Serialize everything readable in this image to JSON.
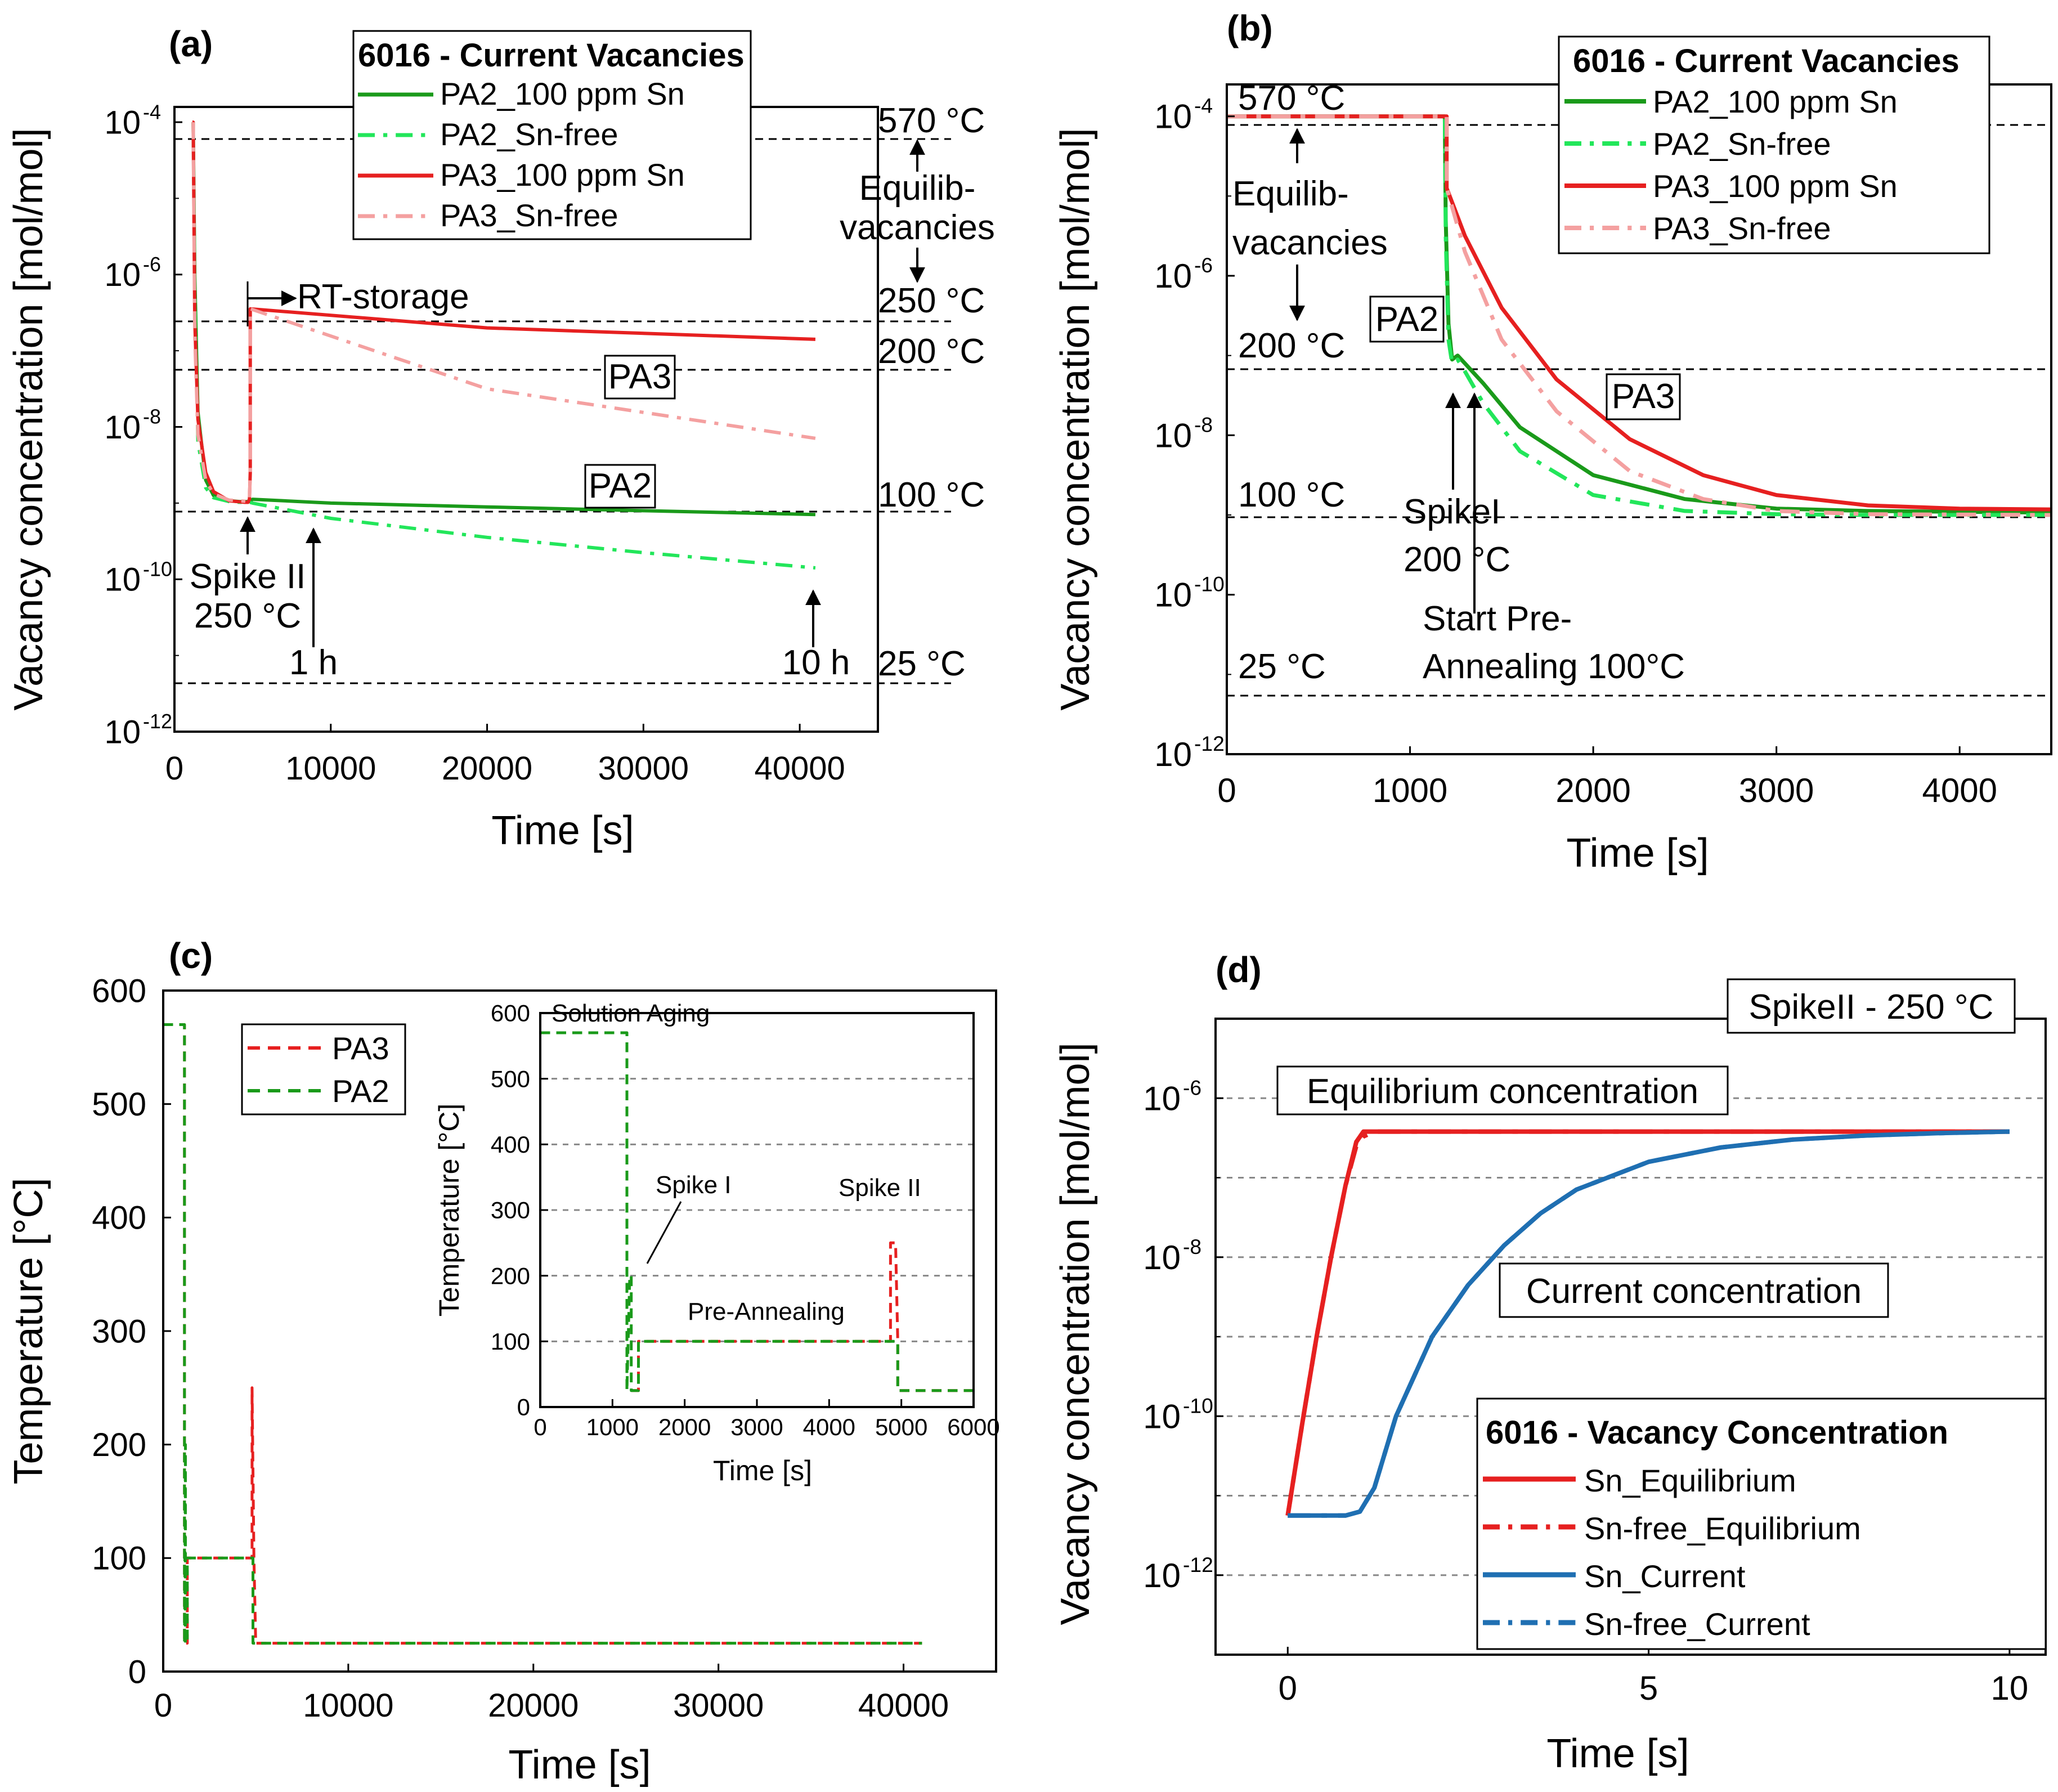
{
  "colors": {
    "green": "#1a9a1a",
    "lightgreen": "#22e65a",
    "red": "#e62020",
    "pink": "#f4a0a0",
    "blue": "#1f6fb2"
  },
  "chart_data": [
    {
      "id": "a",
      "type": "line",
      "panel_label": "(a)",
      "xlabel": "Time [s]",
      "ylabel": "Vacancy concentration [mol/mol]",
      "xlim": [
        0,
        45000
      ],
      "ylim_log10": [
        -12,
        -3.8
      ],
      "y_scale": "log",
      "xticks": [
        "0",
        "10000",
        "20000",
        "30000",
        "40000"
      ],
      "xtick_values": [
        0,
        10000,
        20000,
        30000,
        40000
      ],
      "yticks": [
        "10",
        "10",
        "10",
        "10",
        "10"
      ],
      "ytick_exponents": [
        "-4",
        "-6",
        "-8",
        "-10",
        "-12"
      ],
      "ytick_values_log10": [
        -4,
        -6,
        -8,
        -10,
        -12
      ],
      "legend": {
        "title": "6016 - Current Vacancies",
        "position": "top",
        "items": [
          "PA2_100 ppm Sn",
          "PA2_Sn-free",
          "PA3_100 ppm Sn",
          "PA3_Sn-free"
        ]
      },
      "reference_lines": [
        {
          "label": "570 °C",
          "log10": -4
        },
        {
          "label": "250 °C",
          "log10": -6.45
        },
        {
          "label": "200 °C",
          "log10": -7.1
        },
        {
          "label": "100 °C",
          "log10": -9
        },
        {
          "label": "25 °C",
          "log10": -11.3
        }
      ],
      "annotations": {
        "equilib": [
          "Equilib-",
          "vacancies"
        ],
        "rt_storage": "RT-storage",
        "pa3": "PA3",
        "pa2": "PA2",
        "spike": [
          "Spike II",
          "250 °C"
        ],
        "one_h": "1 h",
        "ten_h": "10 h"
      },
      "series": [
        {
          "name": "PA2_100 ppm Sn",
          "color": "green",
          "style": "solid",
          "x": [
            1200,
            1300,
            1500,
            2000,
            2500,
            3500,
            4200,
            4800,
            5000,
            10000,
            20000,
            30000,
            41000
          ],
          "log10": [
            -4,
            -6,
            -7.8,
            -8.7,
            -8.9,
            -8.97,
            -8.98,
            -8.98,
            -8.95,
            -9.0,
            -9.05,
            -9.1,
            -9.15
          ]
        },
        {
          "name": "PA2_Sn-free",
          "color": "lightgreen",
          "style": "dashdot",
          "x": [
            1200,
            1300,
            1500,
            2000,
            2500,
            3500,
            4200,
            4800,
            5000,
            10000,
            20000,
            30000,
            41000
          ],
          "log10": [
            -4,
            -6.2,
            -8.2,
            -8.8,
            -8.93,
            -8.98,
            -8.99,
            -8.99,
            -9.0,
            -9.2,
            -9.45,
            -9.65,
            -9.85
          ]
        },
        {
          "name": "PA3_100 ppm Sn",
          "color": "red",
          "style": "solid",
          "x": [
            1150,
            1200,
            1300,
            1500,
            2000,
            2500,
            3500,
            4500,
            4700,
            4800,
            4850,
            4850,
            20000,
            41000
          ],
          "log10": [
            -4,
            -4,
            -6.6,
            -7.9,
            -8.6,
            -8.85,
            -8.97,
            -8.99,
            -8.99,
            -8.95,
            -8.6,
            -6.45,
            -6.7,
            -6.85
          ]
        },
        {
          "name": "PA3_Sn-free",
          "color": "pink",
          "style": "dashdot",
          "x": [
            1200,
            1300,
            1500,
            2000,
            2500,
            3500,
            4800,
            4850,
            4850,
            20000,
            41000
          ],
          "log10": [
            -4,
            -6.8,
            -8.1,
            -8.7,
            -8.88,
            -8.96,
            -8.98,
            -8.6,
            -6.45,
            -7.5,
            -8.15
          ]
        }
      ]
    },
    {
      "id": "b",
      "type": "line",
      "panel_label": "(b)",
      "xlabel": "Time [s]",
      "ylabel": "Vacancy concentration [mol/mol]",
      "xlim": [
        0,
        4500
      ],
      "ylim_log10": [
        -12,
        -3.6
      ],
      "y_scale": "log",
      "xticks": [
        "0",
        "1000",
        "2000",
        "3000",
        "4000"
      ],
      "xtick_values": [
        0,
        1000,
        2000,
        3000,
        4000
      ],
      "yticks": [
        "10",
        "10",
        "10",
        "10",
        "10"
      ],
      "ytick_exponents": [
        "-4",
        "-6",
        "-8",
        "-10",
        "-12"
      ],
      "ytick_values_log10": [
        -4,
        -6,
        -8,
        -10,
        -12
      ],
      "legend": {
        "title": "6016 - Current Vacancies",
        "position": "top-right",
        "items": [
          "PA2_100 ppm Sn",
          "PA2_Sn-free",
          "PA3_100 ppm Sn",
          "PA3_Sn-free"
        ]
      },
      "reference_lines": [
        {
          "label": "570 °C",
          "log10": -4
        },
        {
          "label": "200 °C",
          "log10": -7.1
        },
        {
          "label": "100 °C",
          "log10": -9
        },
        {
          "label": "25 °C",
          "log10": -11.3
        }
      ],
      "annotations": {
        "equilib": [
          "Equilib-",
          "vacancies"
        ],
        "pa2": "PA2",
        "pa3": "PA3",
        "spike": [
          "SpikeI",
          "200 °C"
        ],
        "start": [
          "Start Pre-",
          "Annealing 100°C"
        ]
      },
      "series": [
        {
          "name": "PA2_100 ppm Sn",
          "color": "green",
          "style": "solid",
          "x": [
            0,
            1190,
            1195,
            1210,
            1230,
            1260,
            1300,
            1400,
            1600,
            2000,
            2500,
            3000,
            3500,
            4000,
            4500
          ],
          "log10": [
            -4,
            -4,
            -5.3,
            -6.6,
            -7.05,
            -7.0,
            -7.1,
            -7.35,
            -7.9,
            -8.5,
            -8.8,
            -8.92,
            -8.95,
            -8.96,
            -8.97
          ]
        },
        {
          "name": "PA2_Sn-free",
          "color": "lightgreen",
          "style": "dashdot",
          "x": [
            0,
            1190,
            1195,
            1210,
            1230,
            1260,
            1300,
            1400,
            1600,
            2000,
            2500,
            3000,
            3500,
            4000,
            4500
          ],
          "log10": [
            -4,
            -4,
            -5.5,
            -6.8,
            -7.1,
            -7.05,
            -7.2,
            -7.6,
            -8.2,
            -8.75,
            -8.95,
            -8.99,
            -9.0,
            -9.0,
            -9.0
          ]
        },
        {
          "name": "PA3_100 ppm Sn",
          "color": "red",
          "style": "solid",
          "x": [
            0,
            1200,
            1200,
            1300,
            1500,
            1800,
            2200,
            2600,
            3000,
            3500,
            4000,
            4500
          ],
          "log10": [
            -4,
            -4,
            -4.9,
            -5.5,
            -6.4,
            -7.3,
            -8.05,
            -8.5,
            -8.75,
            -8.88,
            -8.92,
            -8.93
          ]
        },
        {
          "name": "PA3_Sn-free",
          "color": "pink",
          "style": "dashdot",
          "x": [
            0,
            1200,
            1200,
            1300,
            1500,
            1800,
            2200,
            2600,
            3000,
            3500,
            4500
          ],
          "log10": [
            -4,
            -4,
            -4.9,
            -5.7,
            -6.8,
            -7.7,
            -8.45,
            -8.8,
            -8.95,
            -8.99,
            -9.0
          ]
        }
      ]
    },
    {
      "id": "c",
      "type": "line",
      "panel_label": "(c)",
      "xlabel": "Time [s]",
      "ylabel": "Temperature [°C]",
      "xlim": [
        0,
        45000
      ],
      "ylim": [
        0,
        600
      ],
      "xticks": [
        "0",
        "10000",
        "20000",
        "30000",
        "40000"
      ],
      "xtick_values": [
        0,
        10000,
        20000,
        30000,
        40000
      ],
      "yticks": [
        "0",
        "100",
        "200",
        "300",
        "400",
        "500",
        "600"
      ],
      "ytick_values": [
        0,
        100,
        200,
        300,
        400,
        500,
        600
      ],
      "legend": {
        "position": "top-left",
        "items": [
          "PA3",
          "PA2"
        ]
      },
      "series": [
        {
          "name": "PA3",
          "color": "red",
          "style": "dashed",
          "x": [
            0,
            1150,
            1150,
            1300,
            1300,
            4800,
            4800,
            4900,
            5000,
            41000
          ],
          "y": [
            570,
            570,
            25,
            25,
            100,
            100,
            250,
            100,
            25,
            25
          ]
        },
        {
          "name": "PA2",
          "color": "green",
          "style": "dashed",
          "x": [
            0,
            1150,
            1150,
            1200,
            1200,
            1300,
            1300,
            4850,
            4850,
            41000
          ],
          "y": [
            570,
            570,
            25,
            200,
            25,
            25,
            100,
            100,
            25,
            25
          ]
        }
      ],
      "inset": {
        "xlabel": "Time [s]",
        "ylabel": "Temperature [°C]",
        "xlim": [
          0,
          6000
        ],
        "ylim": [
          0,
          600
        ],
        "xticks": [
          "0",
          "1000",
          "2000",
          "3000",
          "4000",
          "5000",
          "6000"
        ],
        "xtick_values": [
          0,
          1000,
          2000,
          3000,
          4000,
          5000,
          6000
        ],
        "yticks": [
          "0",
          "100",
          "200",
          "300",
          "400",
          "500",
          "600"
        ],
        "ytick_values": [
          0,
          100,
          200,
          300,
          400,
          500,
          600
        ],
        "annotations": {
          "solution": "Solution Aging",
          "spike1": "Spike I",
          "spike2": "Spike II",
          "pre": "Pre-Annealing"
        },
        "series": [
          {
            "name": "PA3",
            "color": "red",
            "style": "dashed",
            "x": [
              0,
              1200,
              1200,
              1360,
              1360,
              4850,
              4850,
              4920,
              4950,
              4950,
              6000
            ],
            "y": [
              570,
              570,
              25,
              25,
              100,
              100,
              250,
              250,
              100,
              25,
              25
            ]
          },
          {
            "name": "PA2",
            "color": "green",
            "style": "dashed",
            "x": [
              0,
              1200,
              1200,
              1240,
              1260,
              1260,
              1360,
              1360,
              4950,
              4950,
              6000
            ],
            "y": [
              570,
              570,
              25,
              200,
              200,
              25,
              25,
              100,
              100,
              25,
              25
            ]
          }
        ]
      }
    },
    {
      "id": "d",
      "type": "line",
      "panel_label": "(d)",
      "xlabel": "Time [s]",
      "ylabel": "Vacancy concentration [mol/mol]",
      "xlim": [
        -1,
        10.5
      ],
      "ylim_log10": [
        -13,
        -5.0
      ],
      "y_scale": "log",
      "xticks": [
        "0",
        "5",
        "10"
      ],
      "xtick_values": [
        0,
        5,
        10
      ],
      "yticks": [
        "10",
        "10",
        "10",
        "10"
      ],
      "ytick_exponents": [
        "-6",
        "-8",
        "-10",
        "-12"
      ],
      "ytick_values_log10": [
        -6,
        -8,
        -10,
        -12
      ],
      "grid_log10": [
        -6,
        -7,
        -8,
        -9,
        -10,
        -11,
        -12,
        -13
      ],
      "title_box": "SpikeII - 250 °C",
      "annotations": {
        "equilibrium": "Equilibrium concentration",
        "current": "Current concentration"
      },
      "legend": {
        "title": "6016 - Vacancy Concentration",
        "position": "bottom-right",
        "items": [
          "Sn_Equilibrium",
          "Sn-free_Equilibrium",
          "Sn_Current",
          "Sn-free_Current"
        ]
      },
      "series": [
        {
          "name": "Sn_Equilibrium",
          "color": "red",
          "style": "solid",
          "x": [
            0,
            0.2,
            0.4,
            0.6,
            0.8,
            0.95,
            1.05,
            10
          ],
          "log10": [
            -11.25,
            -10.1,
            -9.0,
            -8.0,
            -7.1,
            -6.55,
            -6.42,
            -6.42
          ]
        },
        {
          "name": "Sn-free_Equilibrium",
          "color": "red",
          "style": "dashdot",
          "x": [
            0,
            0.2,
            0.4,
            0.6,
            0.8,
            0.95,
            1.05,
            1.2,
            10
          ],
          "log10": [
            -11.25,
            -10.1,
            -9.0,
            -8.0,
            -7.1,
            -6.6,
            -6.48,
            -6.42,
            -6.42
          ]
        },
        {
          "name": "Sn_Current",
          "color": "blue",
          "style": "solid",
          "x": [
            0,
            0.5,
            0.8,
            1.0,
            1.2,
            1.5,
            2.0,
            2.5,
            3.0,
            3.5,
            4.0,
            5.0,
            6.0,
            7.0,
            8.0,
            9.0,
            10.0
          ],
          "log10": [
            -11.25,
            -11.25,
            -11.25,
            -11.2,
            -10.9,
            -10.0,
            -9.0,
            -8.35,
            -7.85,
            -7.45,
            -7.15,
            -6.8,
            -6.62,
            -6.52,
            -6.47,
            -6.44,
            -6.42
          ]
        },
        {
          "name": "Sn-free_Current",
          "color": "blue",
          "style": "dashdot",
          "x": [
            0,
            0.5,
            0.8,
            1.0,
            1.2,
            1.5,
            2.0,
            2.5,
            3.0,
            3.5,
            4.0,
            5.0,
            6.0,
            7.0,
            8.0,
            9.0,
            10.0
          ],
          "log10": [
            -11.25,
            -11.25,
            -11.25,
            -11.2,
            -10.9,
            -10.0,
            -9.0,
            -8.35,
            -7.85,
            -7.45,
            -7.15,
            -6.8,
            -6.62,
            -6.52,
            -6.47,
            -6.44,
            -6.42
          ]
        }
      ]
    }
  ]
}
